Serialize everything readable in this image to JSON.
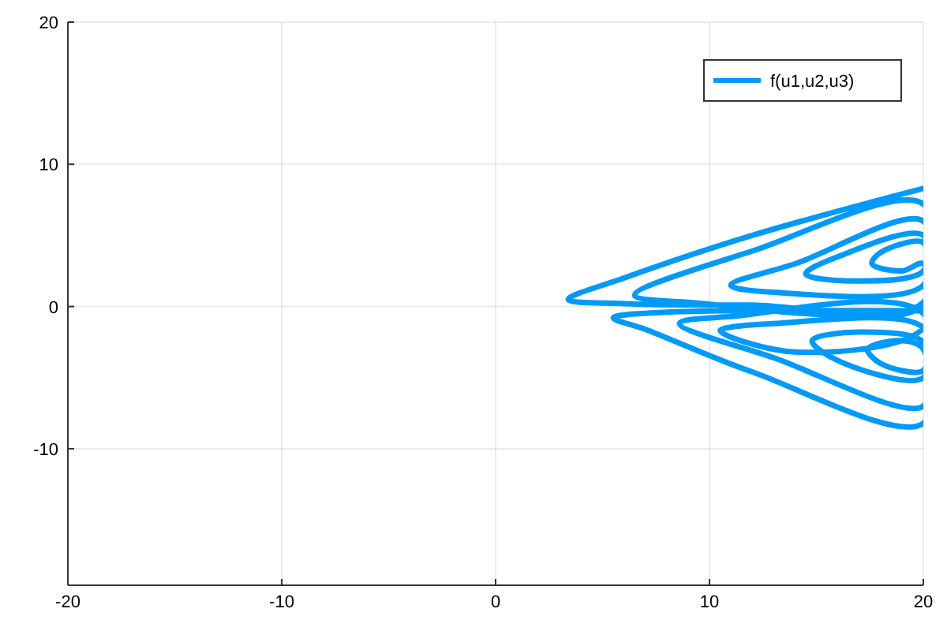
{
  "chart_data": {
    "type": "line",
    "xlim": [
      -20,
      20
    ],
    "ylim": [
      -19.6,
      20
    ],
    "xticks": [
      -20,
      -10,
      0,
      10,
      20
    ],
    "yticks": [
      -10,
      0,
      10,
      20
    ],
    "grid": true,
    "legend": "top right",
    "marker": "none",
    "line_style": "solid",
    "series": [
      {
        "name": "f(u1,u2,u3)",
        "color": "#009af9",
        "x": [
          20,
          12,
          6,
          3.4,
          6,
          12,
          20,
          20,
          12,
          6.5,
          9,
          20,
          20,
          14,
          11,
          13,
          20,
          20,
          16,
          14.5,
          16.5,
          20,
          20,
          18,
          17.6,
          19,
          20,
          20,
          14,
          10.5,
          13,
          20,
          20,
          16,
          14.8,
          17,
          20,
          20,
          18,
          17.4,
          19,
          20,
          20,
          13,
          8.6,
          11,
          20,
          20,
          12,
          7,
          5.5,
          8,
          20
        ],
        "values": [
          8.3,
          5,
          2,
          0.5,
          0.2,
          0.1,
          0.1,
          7.2,
          3.9,
          0.8,
          0.3,
          0.3,
          6,
          3,
          1.5,
          1,
          1.5,
          5,
          3.5,
          2.3,
          1.8,
          2.5,
          4.5,
          3.8,
          3,
          2.5,
          3,
          -1.5,
          -3.2,
          -1.7,
          -1.2,
          -1.5,
          -5,
          -3.8,
          -2.4,
          -1.8,
          -2.5,
          -4.5,
          -4,
          -3,
          -2.4,
          -3,
          -7,
          -3.6,
          -1.2,
          -0.7,
          -0.5,
          -8.2,
          -4.6,
          -1.6,
          -0.8,
          -0.4,
          -0.3
        ]
      }
    ]
  }
}
